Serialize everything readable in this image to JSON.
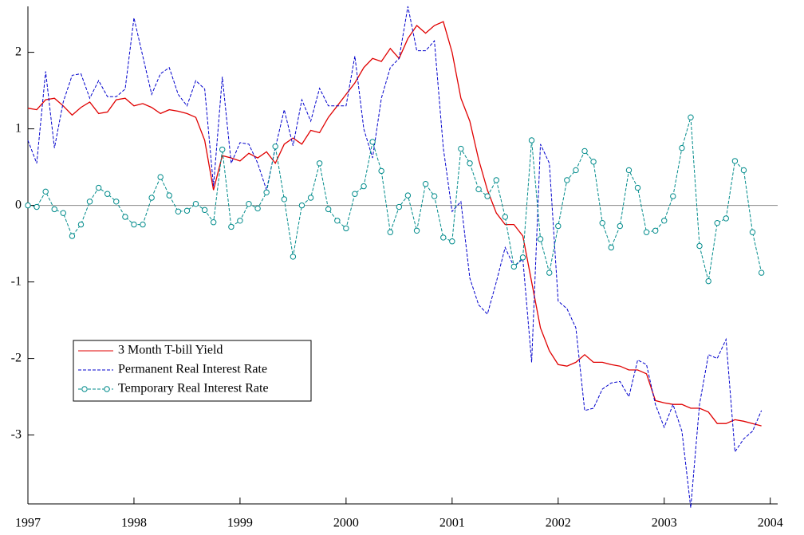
{
  "chart_data": {
    "type": "line",
    "x": [
      1997,
      1997.083,
      1997.167,
      1997.25,
      1997.333,
      1997.417,
      1997.5,
      1997.583,
      1997.667,
      1997.75,
      1997.833,
      1997.917,
      1998,
      1998.083,
      1998.167,
      1998.25,
      1998.333,
      1998.417,
      1998.5,
      1998.583,
      1998.667,
      1998.75,
      1998.833,
      1998.917,
      1999,
      1999.083,
      1999.167,
      1999.25,
      1999.333,
      1999.417,
      1999.5,
      1999.583,
      1999.667,
      1999.75,
      1999.833,
      1999.917,
      2000,
      2000.083,
      2000.167,
      2000.25,
      2000.333,
      2000.417,
      2000.5,
      2000.583,
      2000.667,
      2000.75,
      2000.833,
      2000.917,
      2001,
      2001.083,
      2001.167,
      2001.25,
      2001.333,
      2001.417,
      2001.5,
      2001.583,
      2001.667,
      2001.75,
      2001.833,
      2001.917,
      2002,
      2002.083,
      2002.167,
      2002.25,
      2002.333,
      2002.417,
      2002.5,
      2002.583,
      2002.667,
      2002.75,
      2002.833,
      2002.917,
      2003,
      2003.083,
      2003.167,
      2003.25,
      2003.333,
      2003.417,
      2003.5,
      2003.583,
      2003.667,
      2003.75,
      2003.833,
      2003.917
    ],
    "series": [
      {
        "name": "3 Month T-bill Yield",
        "color": "#e00000",
        "style": "solid",
        "marker": "none",
        "values": [
          1.27,
          1.25,
          1.38,
          1.4,
          1.3,
          1.18,
          1.28,
          1.35,
          1.2,
          1.22,
          1.38,
          1.4,
          1.3,
          1.33,
          1.28,
          1.2,
          1.25,
          1.23,
          1.2,
          1.15,
          0.85,
          0.2,
          0.65,
          0.62,
          0.58,
          0.68,
          0.62,
          0.7,
          0.55,
          0.8,
          0.88,
          0.8,
          0.98,
          0.95,
          1.15,
          1.3,
          1.45,
          1.6,
          1.8,
          1.92,
          1.88,
          2.05,
          1.92,
          2.18,
          2.35,
          2.25,
          2.35,
          2.4,
          2.0,
          1.4,
          1.1,
          0.6,
          0.2,
          -0.1,
          -0.25,
          -0.25,
          -0.4,
          -1.0,
          -1.6,
          -1.9,
          -2.08,
          -2.1,
          -2.05,
          -1.95,
          -2.05,
          -2.05,
          -2.08,
          -2.1,
          -2.15,
          -2.15,
          -2.2,
          -2.55,
          -2.58,
          -2.6,
          -2.6,
          -2.65,
          -2.65,
          -2.7,
          -2.85,
          -2.85,
          -2.8,
          -2.82,
          -2.85,
          -2.88
        ]
      },
      {
        "name": "Permanent Real Interest Rate",
        "color": "#0000cc",
        "style": "dashed",
        "marker": "none",
        "values": [
          0.85,
          0.55,
          1.75,
          0.75,
          1.35,
          1.7,
          1.72,
          1.4,
          1.63,
          1.42,
          1.42,
          1.52,
          2.45,
          1.95,
          1.45,
          1.72,
          1.8,
          1.45,
          1.3,
          1.63,
          1.52,
          0.25,
          1.68,
          0.55,
          0.82,
          0.8,
          0.55,
          0.2,
          0.75,
          1.25,
          0.78,
          1.38,
          1.1,
          1.53,
          1.3,
          1.3,
          1.3,
          1.95,
          1.0,
          0.62,
          1.4,
          1.8,
          1.92,
          2.6,
          2.02,
          2.02,
          2.15,
          0.75,
          -0.08,
          0.05,
          -0.95,
          -1.3,
          -1.42,
          -1.0,
          -0.55,
          -0.8,
          -0.7,
          -2.05,
          0.8,
          0.55,
          -1.25,
          -1.35,
          -1.6,
          -2.68,
          -2.65,
          -2.4,
          -2.32,
          -2.3,
          -2.5,
          -2.02,
          -2.08,
          -2.6,
          -2.9,
          -2.6,
          -2.95,
          -3.95,
          -2.6,
          -1.95,
          -2.0,
          -1.75,
          -3.22,
          -3.05,
          -2.95,
          -2.68
        ]
      },
      {
        "name": "Temporary Real Interest Rate",
        "color": "#008b8b",
        "style": "dashed",
        "marker": "circle",
        "values": [
          0.0,
          -0.02,
          0.18,
          -0.05,
          -0.1,
          -0.4,
          -0.25,
          0.05,
          0.23,
          0.15,
          0.05,
          -0.15,
          -0.25,
          -0.25,
          0.1,
          0.37,
          0.13,
          -0.08,
          -0.07,
          0.02,
          -0.06,
          -0.22,
          0.73,
          -0.28,
          -0.2,
          0.02,
          -0.04,
          0.17,
          0.77,
          0.08,
          -0.67,
          0.0,
          0.1,
          0.55,
          -0.05,
          -0.2,
          -0.3,
          0.15,
          0.25,
          0.83,
          0.45,
          -0.35,
          -0.02,
          0.13,
          -0.33,
          0.28,
          0.12,
          -0.42,
          -0.47,
          0.74,
          0.55,
          0.21,
          0.12,
          0.33,
          -0.15,
          -0.8,
          -0.68,
          0.85,
          -0.44,
          -0.88,
          -0.27,
          0.33,
          0.46,
          0.71,
          0.57,
          -0.23,
          -0.55,
          -0.27,
          0.46,
          0.23,
          -0.35,
          -0.33,
          -0.2,
          0.12,
          0.75,
          1.15,
          -0.53,
          -0.99,
          -0.23,
          -0.17,
          0.58,
          0.46,
          -0.35,
          -0.88
        ]
      }
    ],
    "xlim": [
      1997,
      2004.07
    ],
    "xticks": [
      1997,
      1998,
      1999,
      2000,
      2001,
      2002,
      2003,
      2004
    ],
    "ylim": [
      -3.9,
      2.6
    ],
    "yticks": [
      -3,
      -2,
      -1,
      0,
      1,
      2
    ],
    "reference_line": 0,
    "legend": "lower-left"
  }
}
